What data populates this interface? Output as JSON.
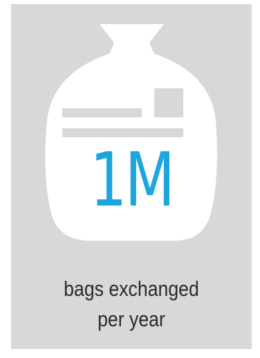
{
  "stat": {
    "value": "1M",
    "caption_line1": "bags exchanged",
    "caption_line2": "per year",
    "icon": "trash-bag-icon"
  },
  "colors": {
    "background": "#d8d8da",
    "bag": "#ffffff",
    "label_bars": "#d8d8da",
    "value": "#1ba6dd",
    "caption": "#2a2a2a"
  }
}
